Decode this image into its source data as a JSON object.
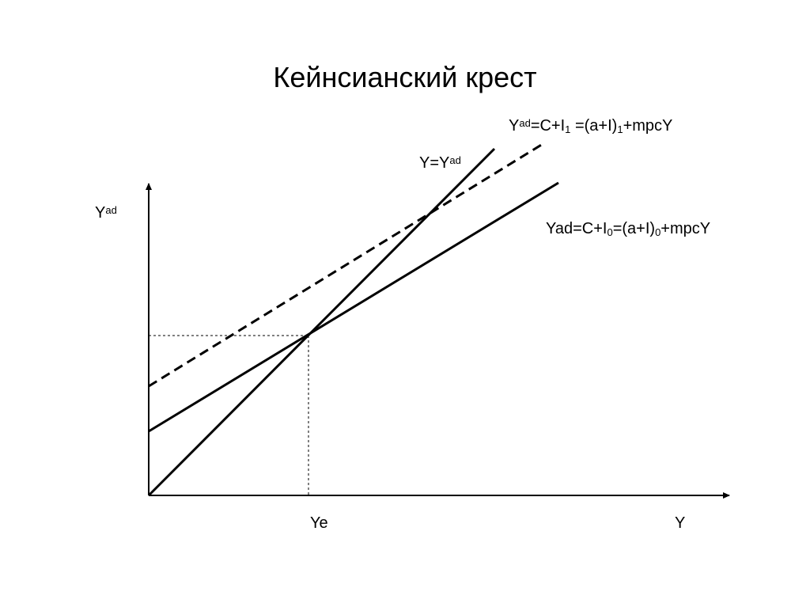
{
  "title": "Кейнсианский крест",
  "labels": [
    {
      "parts": [
        {
          "text": "Y"
        },
        {
          "text": "ad",
          "pos": "sup"
        },
        {
          "text": "=C+I"
        },
        {
          "text": "1",
          "pos": "sub"
        },
        {
          "text": " =(a+I)"
        },
        {
          "text": "1",
          "pos": "sub"
        },
        {
          "text": "+mpcY"
        }
      ]
    },
    {
      "parts": [
        {
          "text": "Y=Y"
        },
        {
          "text": "ad",
          "pos": "sup"
        }
      ]
    },
    {
      "parts": [
        {
          "text": "Yad=C+I"
        },
        {
          "text": "0",
          "pos": "sub"
        },
        {
          "text": "=(a+I)"
        },
        {
          "text": "0",
          "pos": "sub"
        },
        {
          "text": "+mpcY"
        }
      ]
    },
    {
      "parts": [
        {
          "text": "Y"
        },
        {
          "text": "ad",
          "pos": "sup"
        }
      ]
    },
    {
      "parts": [
        {
          "text": "Ye"
        }
      ]
    },
    {
      "parts": [
        {
          "text": "Y"
        }
      ]
    }
  ]
}
